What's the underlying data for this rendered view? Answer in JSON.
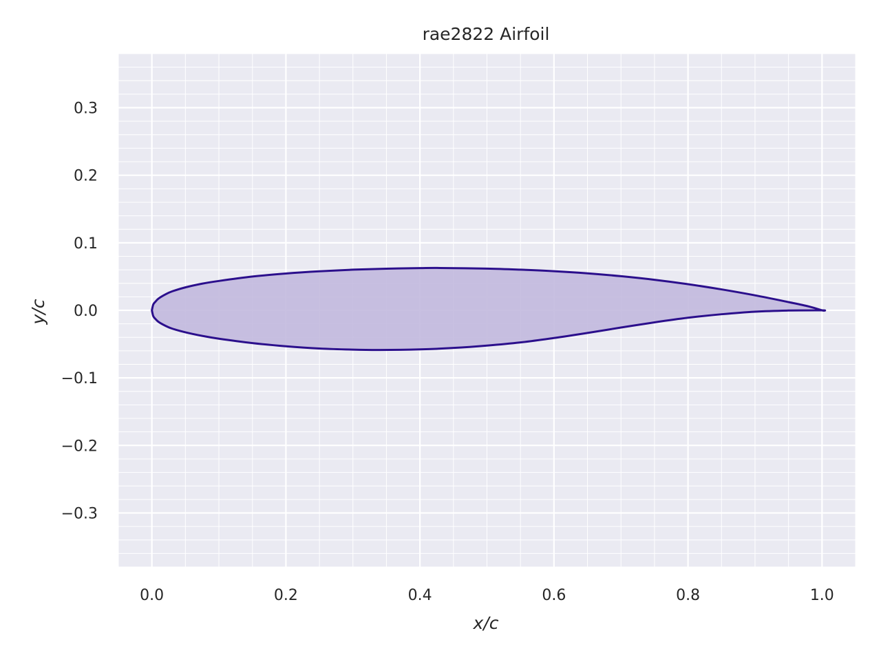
{
  "chart_data": {
    "type": "line",
    "title": "rae2822 Airfoil",
    "xlabel": "x/c",
    "ylabel": "y/c",
    "xlim": [
      -0.05,
      1.05
    ],
    "ylim": [
      -0.38,
      0.38
    ],
    "grid": true,
    "minor_grid": true,
    "legend": "none",
    "x_ticks": [
      0.0,
      0.2,
      0.4,
      0.6,
      0.8,
      1.0
    ],
    "x_tick_labels": [
      "0.0",
      "0.2",
      "0.4",
      "0.6",
      "0.8",
      "1.0"
    ],
    "y_ticks": [
      0.3,
      0.2,
      0.1,
      0.0,
      -0.1,
      -0.2,
      -0.3
    ],
    "y_tick_labels": [
      "0.3",
      "0.2",
      "0.1",
      "0.0",
      "−0.1",
      "−0.2",
      "−0.3"
    ],
    "colors": {
      "line": "#2b0f8c",
      "fill": "#c2b9de",
      "background": "#eaeaf2",
      "grid": "#ffffff"
    },
    "series": [
      {
        "name": "",
        "part": "upper surface",
        "x": [
          0.0,
          0.002,
          0.005,
          0.01,
          0.02,
          0.03,
          0.05,
          0.075,
          0.1,
          0.15,
          0.2,
          0.25,
          0.3,
          0.35,
          0.4,
          0.43,
          0.5,
          0.55,
          0.6,
          0.65,
          0.7,
          0.75,
          0.8,
          0.85,
          0.9,
          0.95,
          0.98,
          1.0
        ],
        "y": [
          0.0,
          0.0085,
          0.0125,
          0.0175,
          0.0235,
          0.028,
          0.034,
          0.0395,
          0.0435,
          0.05,
          0.0545,
          0.0578,
          0.0602,
          0.0617,
          0.0625,
          0.0627,
          0.0618,
          0.0602,
          0.058,
          0.0548,
          0.0505,
          0.0452,
          0.0387,
          0.031,
          0.0222,
          0.0122,
          0.0058,
          0.0
        ]
      },
      {
        "name": "",
        "part": "lower surface",
        "x": [
          0.0,
          0.002,
          0.005,
          0.01,
          0.02,
          0.03,
          0.05,
          0.075,
          0.1,
          0.15,
          0.2,
          0.25,
          0.3,
          0.34,
          0.4,
          0.45,
          0.5,
          0.55,
          0.6,
          0.65,
          0.7,
          0.75,
          0.8,
          0.85,
          0.9,
          0.95,
          1.0
        ],
        "y": [
          0.0,
          -0.0085,
          -0.0125,
          -0.0172,
          -0.0228,
          -0.027,
          -0.0325,
          -0.0378,
          -0.042,
          -0.0485,
          -0.0532,
          -0.0565,
          -0.0582,
          -0.0587,
          -0.0578,
          -0.0557,
          -0.0522,
          -0.0475,
          -0.041,
          -0.0335,
          -0.0255,
          -0.0178,
          -0.011,
          -0.0058,
          -0.002,
          -0.0003,
          0.0
        ]
      }
    ]
  }
}
